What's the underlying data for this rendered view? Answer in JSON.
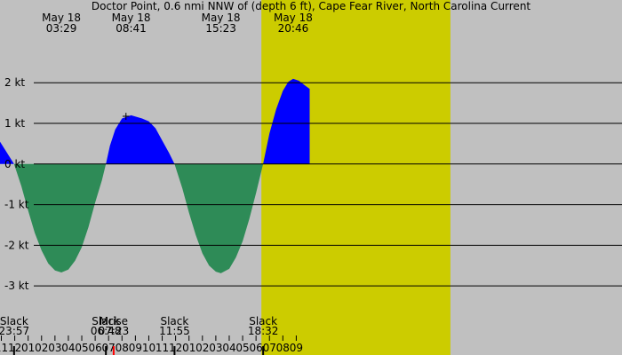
{
  "chart_data": {
    "type": "area",
    "title": "Doctor Point, 0.6 nmi NNW of (depth 6 ft), Cape Fear River, North Carolina Current",
    "colors": {
      "night": "#c0c0c0",
      "day": "#cccc00",
      "flood": "#0000ff",
      "ebb": "#2e8b57",
      "grid": "#000000",
      "moonrise_tick": "#ff0000"
    },
    "x_axis": {
      "unit": "hours after midnight, May 18",
      "range": [
        -13.1,
        33.3
      ],
      "tick_labels": [
        "11",
        "12",
        "01",
        "02",
        "03",
        "04",
        "05",
        "06",
        "07",
        "08",
        "09",
        "10",
        "11",
        "12",
        "01",
        "02",
        "03",
        "04",
        "05",
        "06",
        "07",
        "08",
        "09"
      ],
      "tick_hours": [
        -13,
        -12,
        -11,
        -10,
        -9,
        -8,
        -7,
        -6,
        -5,
        -4,
        -3,
        -2,
        -1,
        0,
        1,
        2,
        3,
        4,
        5,
        6,
        7,
        8,
        9
      ]
    },
    "y_axis": {
      "unit": "kt",
      "range": [
        -3.5,
        3.6
      ],
      "ticks": [
        2,
        1,
        0,
        -1,
        -2,
        -3
      ],
      "tick_labels": [
        "2 kt",
        "1 kt",
        "0 kt",
        "-1 kt",
        "-2 kt",
        "-3 kt"
      ]
    },
    "daylight": {
      "sunrise_hour": 6.4,
      "sunset_hour": 20.5
    },
    "top_events": [
      {
        "date": "May 18",
        "time": "03:29",
        "hour": -8.52
      },
      {
        "date": "May 18",
        "time": "08:41",
        "hour": -3.32
      },
      {
        "date": "May 18",
        "time": "15:23",
        "hour": 3.38
      },
      {
        "date": "May 18",
        "time": "20:46",
        "hour": 8.77
      }
    ],
    "bottom_events": [
      {
        "label": "Slack",
        "time": "23:57",
        "hour": -12.05
      },
      {
        "label": "Slack",
        "time": "06:48",
        "hour": -5.2
      },
      {
        "label": "Mrise",
        "time": "07:23",
        "hour": -4.62
      },
      {
        "label": "Slack",
        "time": "11:55",
        "hour": -0.08
      },
      {
        "label": "Slack",
        "time": "18:32",
        "hour": 6.53
      }
    ],
    "series": [
      {
        "values": [
          [
            -13.1,
            0.55
          ],
          [
            -12.05,
            0
          ],
          [
            -11.5,
            -0.55
          ],
          [
            -11.0,
            -1.15
          ],
          [
            -10.5,
            -1.7
          ],
          [
            -10.0,
            -2.13
          ],
          [
            -9.5,
            -2.45
          ],
          [
            -9.0,
            -2.62
          ],
          [
            -8.52,
            -2.67
          ],
          [
            -8.0,
            -2.6
          ],
          [
            -7.5,
            -2.38
          ],
          [
            -7.0,
            -2.05
          ],
          [
            -6.5,
            -1.55
          ],
          [
            -6.0,
            -0.95
          ],
          [
            -5.5,
            -0.4
          ],
          [
            -5.2,
            0
          ],
          [
            -4.9,
            0.45
          ],
          [
            -4.5,
            0.85
          ],
          [
            -4.0,
            1.12
          ],
          [
            -3.32,
            1.2
          ],
          [
            -2.5,
            1.12
          ],
          [
            -2.0,
            1.05
          ],
          [
            -1.5,
            0.88
          ],
          [
            -1.0,
            0.58
          ],
          [
            -0.5,
            0.28
          ],
          [
            -0.08,
            0
          ],
          [
            0.5,
            -0.6
          ],
          [
            1.0,
            -1.2
          ],
          [
            1.5,
            -1.75
          ],
          [
            2.0,
            -2.2
          ],
          [
            2.5,
            -2.5
          ],
          [
            3.0,
            -2.65
          ],
          [
            3.38,
            -2.69
          ],
          [
            4.0,
            -2.58
          ],
          [
            4.5,
            -2.3
          ],
          [
            5.0,
            -1.9
          ],
          [
            5.5,
            -1.35
          ],
          [
            6.0,
            -0.72
          ],
          [
            6.53,
            0
          ],
          [
            7.0,
            0.75
          ],
          [
            7.5,
            1.35
          ],
          [
            8.0,
            1.8
          ],
          [
            8.4,
            2.02
          ],
          [
            8.77,
            2.1
          ],
          [
            9.2,
            2.05
          ],
          [
            9.7,
            1.92
          ],
          [
            10.0,
            1.85
          ]
        ]
      }
    ]
  }
}
